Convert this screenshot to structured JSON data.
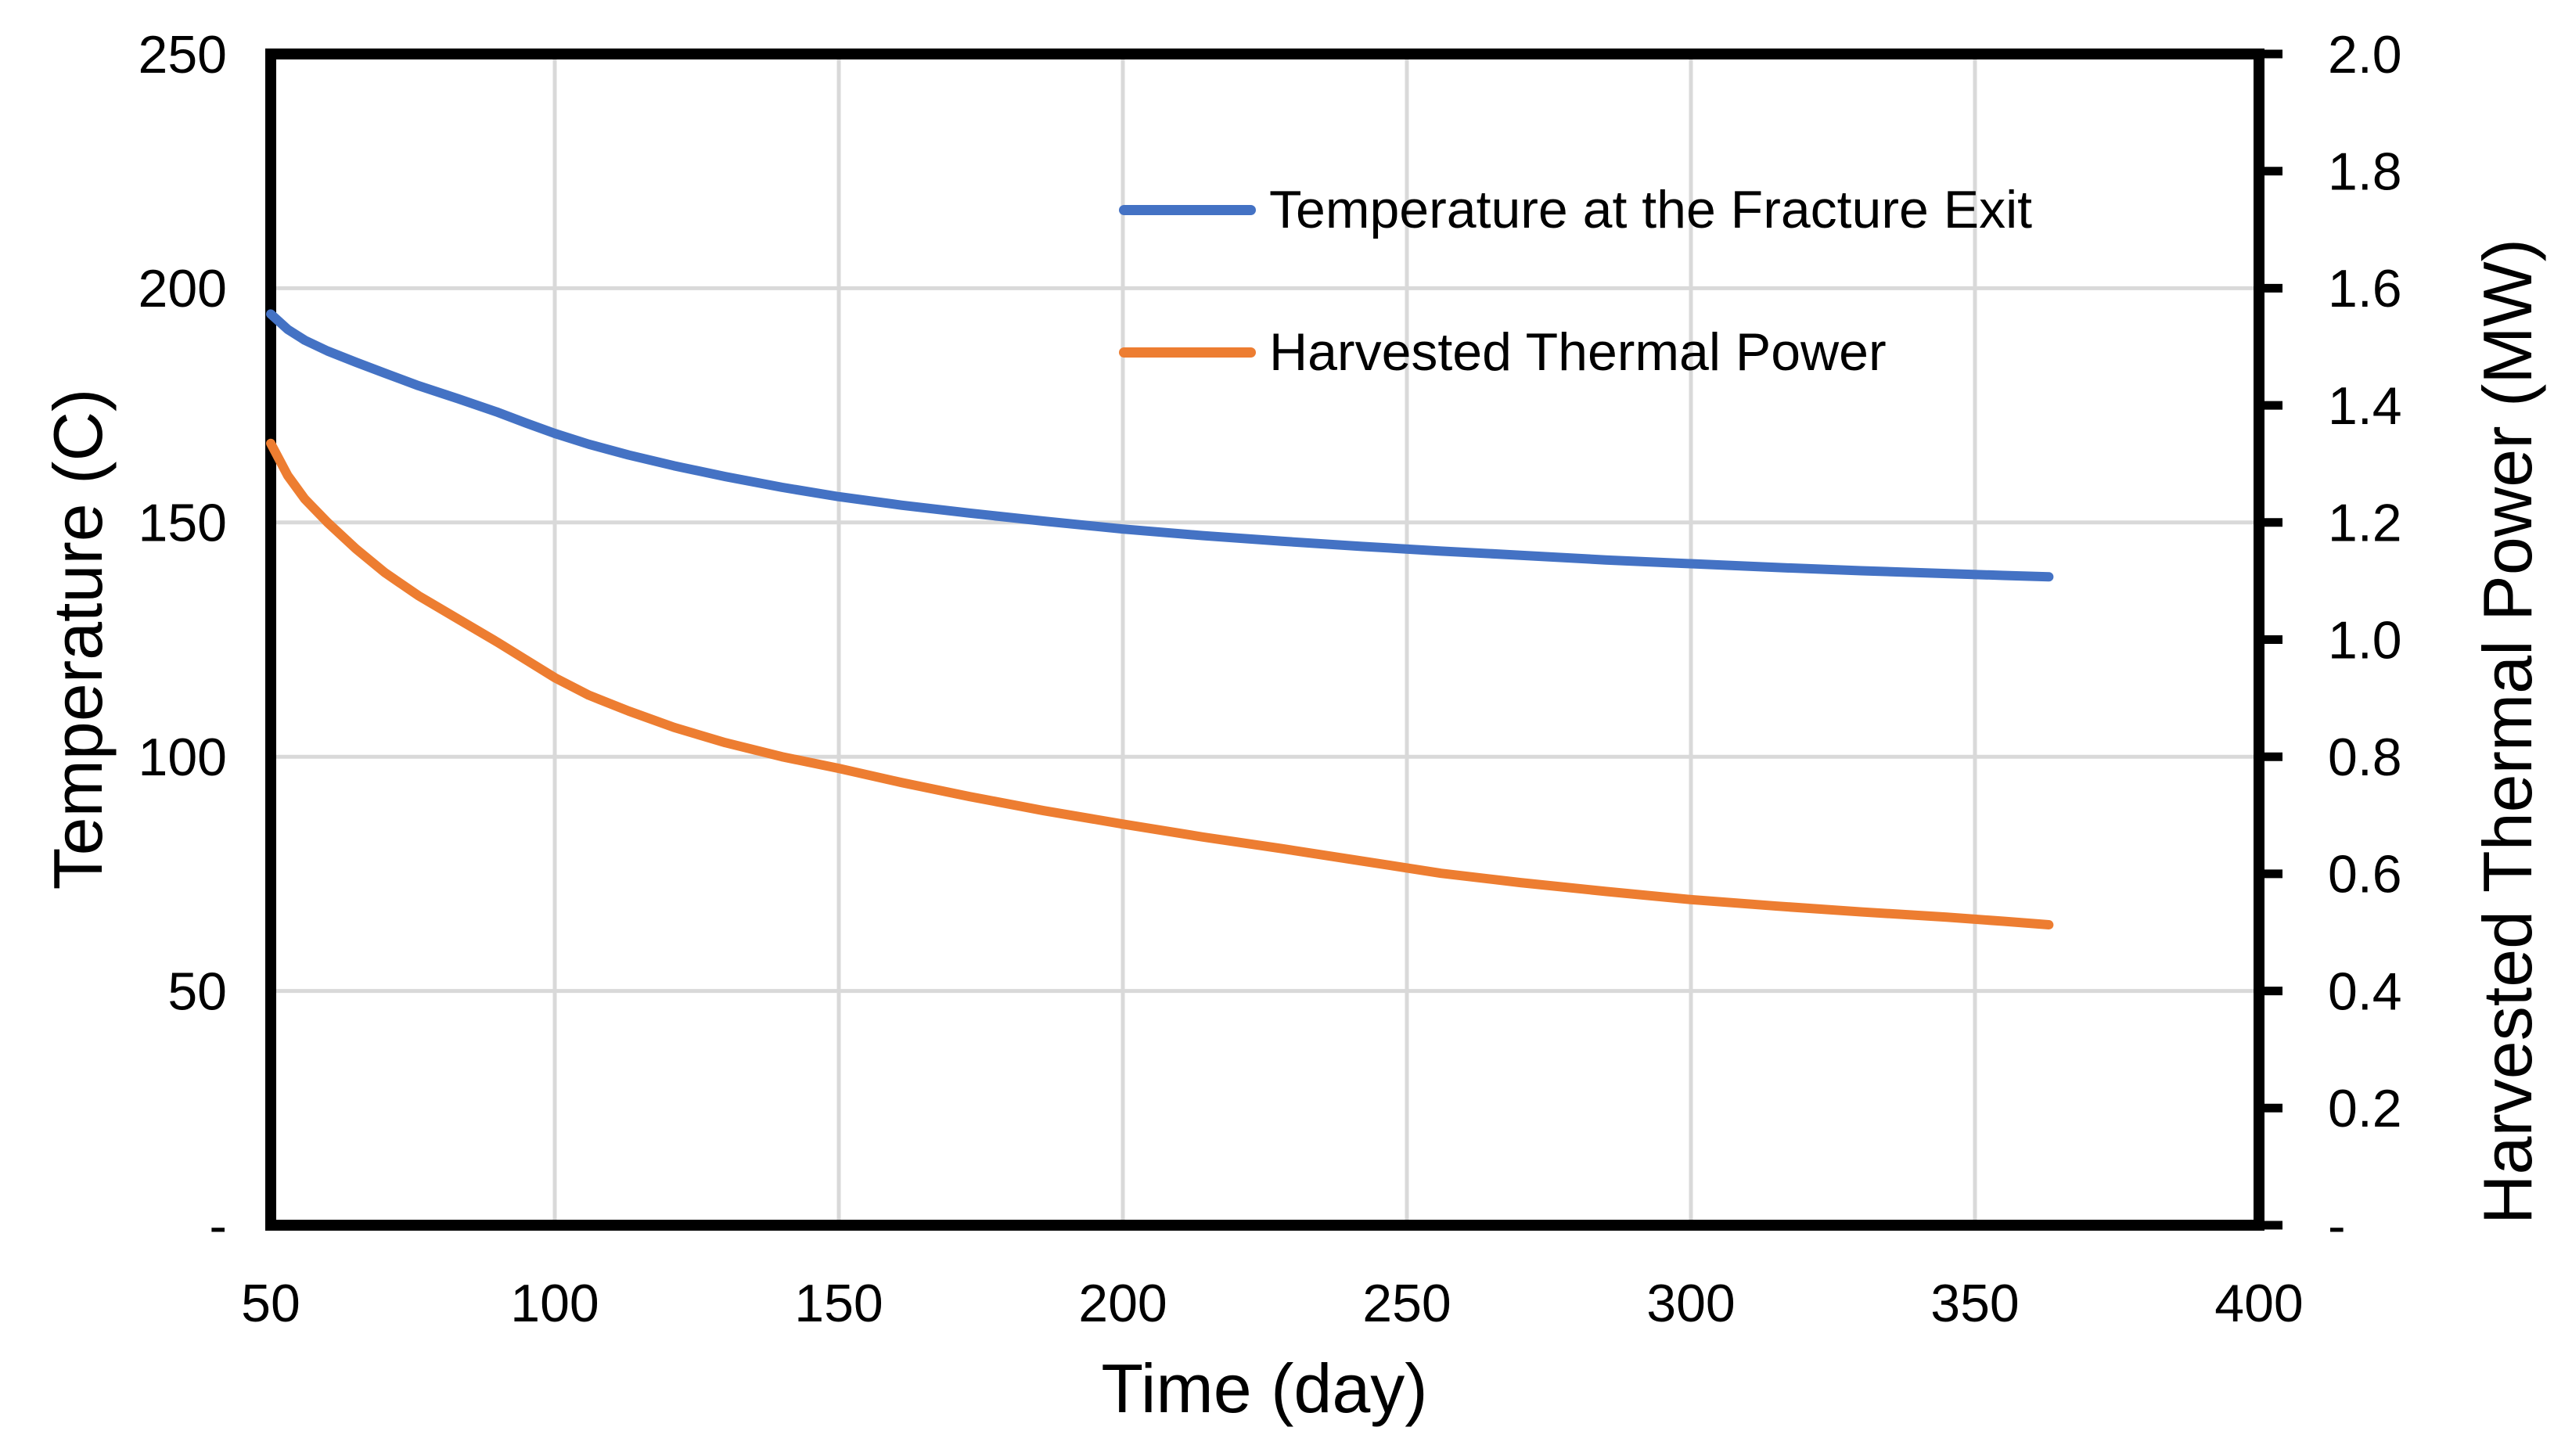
{
  "chart_data": {
    "type": "line",
    "title": "",
    "x_axis": {
      "label": "Time (day)",
      "min": 50,
      "max": 400,
      "tick_values": [
        50,
        100,
        150,
        200,
        250,
        300,
        350,
        400
      ],
      "tick_labels": [
        "50",
        "100",
        "150",
        "200",
        "250",
        "300",
        "350",
        "400"
      ]
    },
    "y_axis_left": {
      "label": "Temperature (C)",
      "min": 0,
      "max": 250,
      "tick_values": [
        250,
        200,
        150,
        100,
        50,
        0
      ],
      "tick_labels": [
        "250",
        "200",
        "150",
        "100",
        "50",
        "-"
      ]
    },
    "y_axis_right": {
      "label": "Harvested Thermal Power (MW)",
      "min": 0,
      "max": 2.0,
      "tick_values": [
        2.0,
        1.8,
        1.6,
        1.4,
        1.2,
        1.0,
        0.8,
        0.6,
        0.4,
        0.2,
        0
      ],
      "tick_labels": [
        "2.0",
        "1.8",
        "1.6",
        "1.4",
        "1.2",
        "1.0",
        "0.8",
        "0.6",
        "0.4",
        "0.2",
        "-"
      ]
    },
    "grid": true,
    "legend_position": "inside-top-center-right",
    "series": [
      {
        "name": "Temperature at the Fracture Exit",
        "axis": "left",
        "color": "#4472C4",
        "points": [
          [
            50,
            194.5
          ],
          [
            53,
            191.2
          ],
          [
            56,
            188.9
          ],
          [
            60,
            186.6
          ],
          [
            65,
            184.2
          ],
          [
            70,
            181.9
          ],
          [
            76,
            179.2
          ],
          [
            83,
            176.4
          ],
          [
            90,
            173.5
          ],
          [
            95,
            171.2
          ],
          [
            100,
            169.0
          ],
          [
            106,
            166.7
          ],
          [
            113,
            164.4
          ],
          [
            121,
            162.1
          ],
          [
            130,
            159.8
          ],
          [
            140,
            157.5
          ],
          [
            150,
            155.5
          ],
          [
            161,
            153.7
          ],
          [
            173,
            152.0
          ],
          [
            186,
            150.3
          ],
          [
            200,
            148.6
          ],
          [
            214,
            147.2
          ],
          [
            228,
            146.0
          ],
          [
            242,
            144.9
          ],
          [
            256,
            143.9
          ],
          [
            270,
            143.0
          ],
          [
            285,
            142.0
          ],
          [
            300,
            141.2
          ],
          [
            315,
            140.4
          ],
          [
            330,
            139.7
          ],
          [
            345,
            139.1
          ],
          [
            355,
            138.7
          ],
          [
            363,
            138.4
          ]
        ]
      },
      {
        "name": "Harvested Thermal Power",
        "axis": "right",
        "color": "#ED7D31",
        "points": [
          [
            50,
            1.335
          ],
          [
            53,
            1.28
          ],
          [
            56,
            1.24
          ],
          [
            60,
            1.2
          ],
          [
            65,
            1.155
          ],
          [
            70,
            1.115
          ],
          [
            76,
            1.075
          ],
          [
            83,
            1.035
          ],
          [
            90,
            0.995
          ],
          [
            95,
            0.965
          ],
          [
            100,
            0.935
          ],
          [
            106,
            0.905
          ],
          [
            113,
            0.878
          ],
          [
            121,
            0.85
          ],
          [
            130,
            0.824
          ],
          [
            140,
            0.8
          ],
          [
            150,
            0.78
          ],
          [
            161,
            0.756
          ],
          [
            173,
            0.732
          ],
          [
            186,
            0.708
          ],
          [
            200,
            0.685
          ],
          [
            214,
            0.663
          ],
          [
            228,
            0.643
          ],
          [
            242,
            0.622
          ],
          [
            256,
            0.601
          ],
          [
            270,
            0.585
          ],
          [
            285,
            0.57
          ],
          [
            300,
            0.556
          ],
          [
            315,
            0.545
          ],
          [
            330,
            0.535
          ],
          [
            345,
            0.526
          ],
          [
            355,
            0.519
          ],
          [
            363,
            0.513
          ]
        ]
      }
    ]
  },
  "colors": {
    "background": "#FFFFFF",
    "axis": "#000000",
    "gridline": "#D9D9D9",
    "series_blue": "#4472C4",
    "series_orange": "#ED7D31",
    "text": "#000000"
  }
}
